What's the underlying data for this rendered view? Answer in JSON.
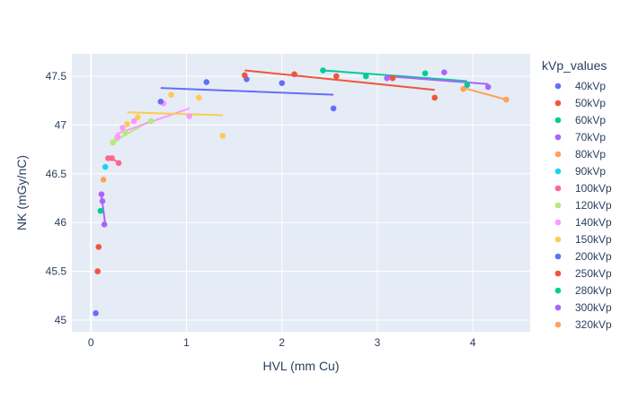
{
  "chart_data": {
    "type": "scatter",
    "title": "",
    "xlabel": "HVL (mm Cu)",
    "ylabel": "NK (mGy/nC)",
    "xlim": [
      -0.2,
      4.6
    ],
    "ylim": [
      44.88,
      47.73
    ],
    "x_ticks": [
      0,
      1,
      2,
      3,
      4
    ],
    "y_ticks": [
      45,
      45.5,
      46,
      46.5,
      47,
      47.5
    ],
    "x_tick_labels": [
      "0",
      "1",
      "2",
      "3",
      "4"
    ],
    "y_tick_labels": [
      "45",
      "45.5",
      "46",
      "46.5",
      "47",
      "47.5"
    ],
    "grid": true,
    "legend_title": "kVp_values",
    "legend_position": "right",
    "series": [
      {
        "name": "40kVp",
        "color": "#636EFA",
        "points": [
          [
            0.05,
            45.07
          ]
        ]
      },
      {
        "name": "50kVp",
        "color": "#EF553B",
        "points": [
          [
            0.07,
            45.5
          ],
          [
            0.08,
            45.75
          ]
        ]
      },
      {
        "name": "60kVp",
        "color": "#00CC96",
        "points": [
          [
            0.1,
            46.12
          ]
        ]
      },
      {
        "name": "70kVp",
        "color": "#AB63FA",
        "points": [
          [
            0.11,
            46.29
          ],
          [
            0.12,
            46.22
          ],
          [
            0.14,
            45.98
          ]
        ],
        "trend": [
          [
            0.11,
            46.27
          ],
          [
            0.15,
            45.98
          ]
        ]
      },
      {
        "name": "80kVp",
        "color": "#FFA15A",
        "points": [
          [
            0.13,
            46.44
          ]
        ]
      },
      {
        "name": "90kVp",
        "color": "#19D3F3",
        "points": [
          [
            0.15,
            46.57
          ]
        ]
      },
      {
        "name": "100kVp",
        "color": "#FF6692",
        "points": [
          [
            0.18,
            46.66
          ],
          [
            0.22,
            46.66
          ],
          [
            0.29,
            46.61
          ]
        ],
        "trend": [
          [
            0.17,
            46.67
          ],
          [
            0.29,
            46.62
          ]
        ]
      },
      {
        "name": "120kVp",
        "color": "#B6E880",
        "points": [
          [
            0.23,
            46.82
          ],
          [
            0.27,
            46.86
          ],
          [
            0.36,
            46.92
          ],
          [
            0.63,
            47.04
          ]
        ],
        "trend": [
          [
            0.22,
            46.82
          ],
          [
            0.63,
            47.05
          ]
        ]
      },
      {
        "name": "140kVp",
        "color": "#FF97FF",
        "points": [
          [
            0.28,
            46.88
          ],
          [
            0.33,
            46.97
          ],
          [
            0.45,
            47.04
          ],
          [
            0.76,
            47.22
          ],
          [
            1.03,
            47.09
          ]
        ],
        "trend": [
          [
            0.27,
            46.91
          ],
          [
            1.03,
            47.17
          ]
        ]
      },
      {
        "name": "150kVp",
        "color": "#FECB52",
        "points": [
          [
            0.38,
            47.01
          ],
          [
            0.49,
            47.08
          ],
          [
            0.84,
            47.31
          ],
          [
            1.13,
            47.28
          ],
          [
            1.38,
            46.89
          ]
        ],
        "trend": [
          [
            0.38,
            47.13
          ],
          [
            1.38,
            47.1
          ]
        ]
      },
      {
        "name": "200kVp",
        "color": "#636EFA",
        "points": [
          [
            0.73,
            47.24
          ],
          [
            1.21,
            47.44
          ],
          [
            1.63,
            47.47
          ],
          [
            2.0,
            47.43
          ],
          [
            2.54,
            47.17
          ]
        ],
        "trend": [
          [
            0.73,
            47.38
          ],
          [
            2.54,
            47.31
          ]
        ]
      },
      {
        "name": "250kVp",
        "color": "#EF553B",
        "points": [
          [
            1.61,
            47.51
          ],
          [
            2.13,
            47.52
          ],
          [
            2.57,
            47.5
          ],
          [
            3.16,
            47.48
          ],
          [
            3.6,
            47.28
          ]
        ],
        "trend": [
          [
            1.61,
            47.56
          ],
          [
            3.6,
            47.36
          ]
        ]
      },
      {
        "name": "280kVp",
        "color": "#00CC96",
        "points": [
          [
            2.43,
            47.56
          ],
          [
            2.88,
            47.5
          ],
          [
            3.5,
            47.53
          ],
          [
            3.94,
            47.41
          ]
        ],
        "trend": [
          [
            2.43,
            47.56
          ],
          [
            3.94,
            47.45
          ]
        ]
      },
      {
        "name": "300kVp",
        "color": "#AB63FA",
        "points": [
          [
            3.1,
            47.48
          ],
          [
            3.7,
            47.54
          ],
          [
            4.16,
            47.39
          ]
        ],
        "trend": [
          [
            3.1,
            47.5
          ],
          [
            4.16,
            47.42
          ]
        ]
      },
      {
        "name": "320kVp",
        "color": "#FFA15A",
        "points": [
          [
            3.9,
            47.37
          ],
          [
            4.35,
            47.26
          ]
        ],
        "trend": [
          [
            3.9,
            47.38
          ],
          [
            4.35,
            47.26
          ]
        ]
      }
    ]
  }
}
